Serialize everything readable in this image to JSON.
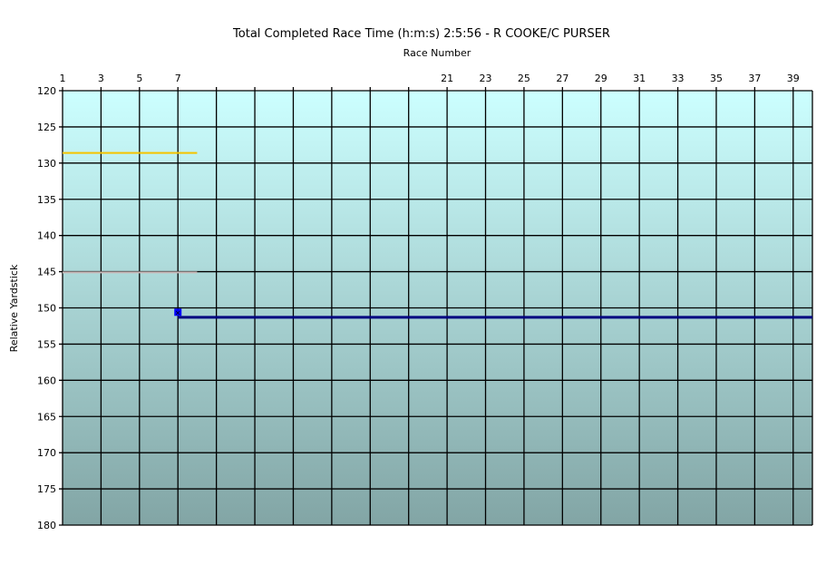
{
  "chart_data": {
    "type": "line",
    "title": "Total Completed Race Time (h:m:s) 2:5:56 -  R COOKE/C PURSER",
    "xlabel": "Race Number",
    "ylabel": "Relative Yardstick",
    "xlim": [
      1,
      40
    ],
    "ylim": [
      120,
      180
    ],
    "y_reversed": true,
    "x_axis_position": "top",
    "x_ticks": [
      1,
      3,
      5,
      7,
      21,
      23,
      25,
      27,
      29,
      31,
      33,
      35,
      37,
      39
    ],
    "x_grid": [
      1,
      3,
      5,
      7,
      9,
      11,
      13,
      15,
      17,
      19,
      21,
      23,
      25,
      27,
      29,
      31,
      33,
      35,
      37,
      39
    ],
    "y_ticks": [
      120,
      125,
      130,
      135,
      140,
      145,
      150,
      155,
      160,
      165,
      170,
      175,
      180
    ],
    "grid": true,
    "background_gradient": [
      "#ccffff",
      "#82a5a5"
    ],
    "series": [
      {
        "color": "#f5c400",
        "x": [
          1,
          8
        ],
        "y": [
          128.6,
          128.6
        ]
      },
      {
        "color": "#c8b8b8",
        "x": [
          1,
          8
        ],
        "y": [
          145.1,
          145.1
        ]
      },
      {
        "color": "#000080",
        "x": [
          7,
          40
        ],
        "y": [
          151.3,
          151.3
        ]
      },
      {
        "color": "#0000ff",
        "marker": "square",
        "x": [
          7
        ],
        "y": [
          150.6
        ]
      }
    ]
  }
}
